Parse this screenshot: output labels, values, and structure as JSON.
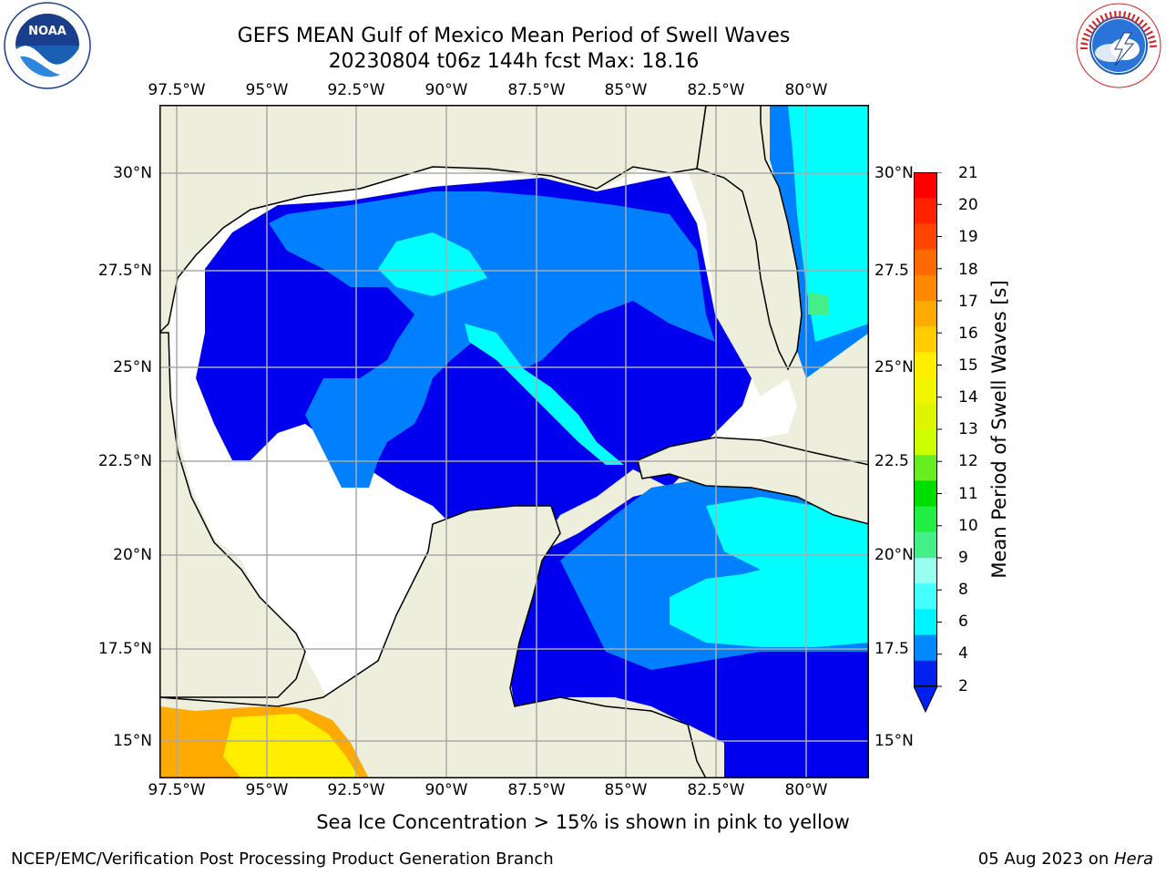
{
  "title_line1": "GEFS MEAN Gulf of Mexico Mean Period of Swell Waves",
  "title_line2": "20230804 t06z 144h fcst   Max: 18.16",
  "lon_labels": [
    "97.5°W",
    "95°W",
    "92.5°W",
    "90°W",
    "87.5°W",
    "85°W",
    "82.5°W",
    "80°W"
  ],
  "lat_labels": [
    "30°N",
    "27.5°N",
    "25°N",
    "22.5°N",
    "20°N",
    "17.5°N",
    "15°N"
  ],
  "lat_labels_right": [
    "30°N",
    "27.5",
    "25°N",
    "22.5",
    "20°N",
    "17.5",
    "15°N"
  ],
  "colorbar": {
    "label": "Mean Period of Swell Waves [s]",
    "ticks": [
      "21",
      "20",
      "19",
      "18",
      "17",
      "16",
      "15",
      "14",
      "13",
      "12",
      "11",
      "10",
      "9",
      "8",
      "6",
      "4",
      "2"
    ],
    "colors": [
      "#ff0000",
      "#ff2200",
      "#ff4400",
      "#ff6a00",
      "#ff8800",
      "#ffaa00",
      "#ffcc00",
      "#ffee00",
      "#f0f500",
      "#ddf500",
      "#ccff00",
      "#66ee22",
      "#00dd00",
      "#22ee44",
      "#44ee88",
      "#99ffee",
      "#44ffff",
      "#00f4ff",
      "#0088ff",
      "#0020ee"
    ]
  },
  "note": "Sea Ice Concentration > 15% is shown in pink to yellow",
  "footer_left": "NCEP/EMC/Verification Post Processing Product Generation Branch",
  "footer_date": "05 Aug 2023 on ",
  "footer_host": "Hera",
  "logos": {
    "left": "noaa-logo",
    "right": "nws-logo",
    "left_text": "NOAA",
    "left_ring": "NATIONAL OCEANIC AND ATMOSPHERIC ADMINISTRATION · U.S. DEPARTMENT OF COMMERCE",
    "right_ring": "NATIONAL WEATHER SERVICE"
  },
  "colors": {
    "land": "#eeeedd",
    "ocean_low": "#0000ee",
    "ocean_mid": "#0080ff",
    "ocean_cyan": "#00ffff",
    "ice_yellow": "#ffee00",
    "ice_orange": "#ffaa00"
  }
}
